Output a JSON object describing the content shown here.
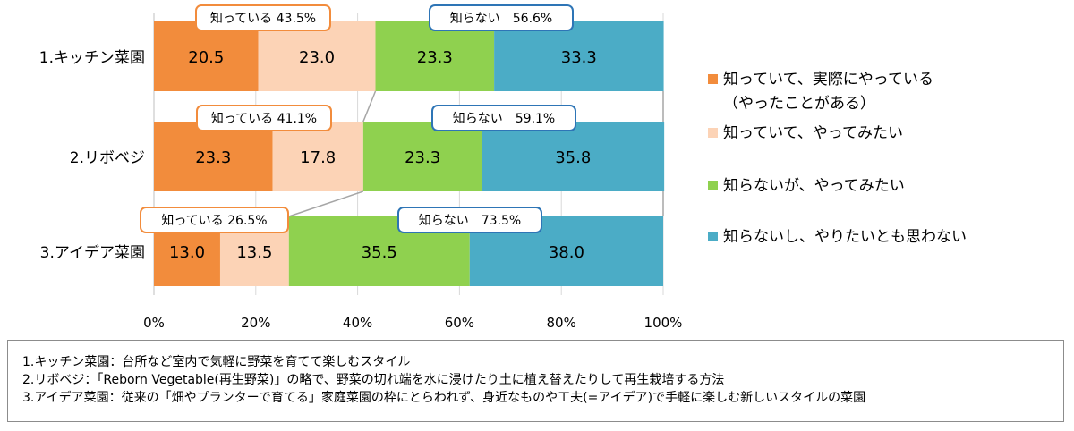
{
  "chart_data": {
    "type": "bar",
    "orientation": "horizontal",
    "stacked": true,
    "categories": [
      "1.キッチン菜園",
      "2.リボベジ",
      "3.アイデア菜園"
    ],
    "series": [
      {
        "name": "知っていて、実際にやっている（やったことがある）",
        "legend_lines": [
          "知っていて、実際にやっている",
          "（やったことがある）"
        ],
        "color": "#f28c3c",
        "values": [
          20.5,
          23.3,
          13.0
        ],
        "labels": [
          "20.5",
          "23.3",
          "13.0"
        ]
      },
      {
        "name": "知っていて、やってみたい",
        "legend_lines": [
          "知っていて、やってみたい"
        ],
        "color": "#fcd3b6",
        "values": [
          23.0,
          17.8,
          13.5
        ],
        "labels": [
          "23.0",
          "17.8",
          "13.5"
        ]
      },
      {
        "name": "知らないが、やってみたい",
        "legend_lines": [
          "知らないが、やってみたい"
        ],
        "color": "#8fd14f",
        "values": [
          23.3,
          23.3,
          35.5
        ],
        "labels": [
          "23.3",
          "23.3",
          "35.5"
        ]
      },
      {
        "name": "知らないし、やりたいとも思わない",
        "legend_lines": [
          "知らないし、やりたいとも思わない"
        ],
        "color": "#4bacc6",
        "values": [
          33.3,
          35.8,
          38.0
        ],
        "labels": [
          "33.3",
          "35.8",
          "38.0"
        ]
      }
    ],
    "xlim": [
      0,
      100
    ],
    "xticks": [
      "0%",
      "20%",
      "40%",
      "60%",
      "80%",
      "100%"
    ],
    "legend_position": "right",
    "grid": true,
    "annotations": {
      "know": [
        "知っている 43.5%",
        "知っている 41.1%",
        "知っている 26.5%"
      ],
      "dontknow": [
        "知らない　56.6%",
        "知らない　59.1%",
        "知らない　73.5%"
      ],
      "know_border": "#f28c3c",
      "dontknow_border": "#2e75b6"
    }
  },
  "footnotes": [
    "1.キッチン菜園：台所など室内で気軽に野菜を育てて楽しむスタイル",
    "2.リボベジ：「Reborn Vegetable(再生野菜)」の略で、野菜の切れ端を水に浸けたり土に植え替えたりして再生栽培する方法",
    "3.アイデア菜園：従来の「畑やプランターで育てる」家庭菜園の枠にとらわれず、身近なものや工夫(=アイデア)で手軽に楽しむ新しいスタイルの菜園"
  ]
}
